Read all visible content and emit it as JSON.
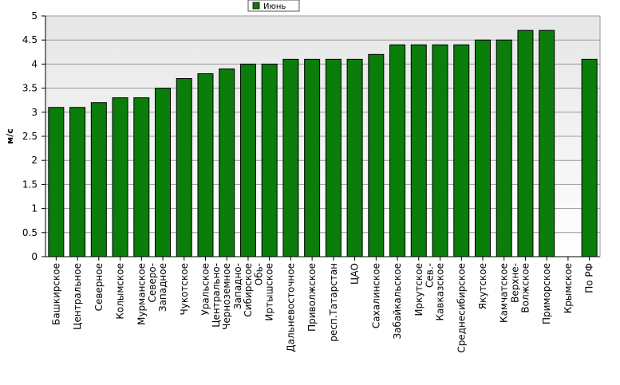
{
  "chart_data": {
    "type": "bar",
    "title": "",
    "xlabel": "",
    "ylabel": "м/с",
    "ylim": [
      0,
      5
    ],
    "yticks": [
      "0",
      "0.5",
      "1",
      "1.5",
      "2",
      "2.5",
      "3",
      "3.5",
      "4",
      "4.5",
      "5"
    ],
    "grid": true,
    "legend_position": "top-center",
    "bar_color": "#0a7d0a",
    "categories": [
      "Башкирское",
      "Центральное",
      "Северное",
      "Колымское",
      "Мурманское",
      "Северо-\nЗападное",
      "Чукотское",
      "Уральское",
      "Центрально-\nЧерноземное",
      "Западно-\nСибирское",
      "Обь-\nИртышское",
      "Дальневосточное",
      "Приволжское",
      "респ.Татарстан",
      "ЦАО",
      "Сахалинское",
      "Забайкальское",
      "Иркутское",
      "Сев.-\nКавказское",
      "Среднесибирское",
      "Якутское",
      "Камчатское",
      "Верхне-\nВолжское",
      "Приморское",
      "Крымское",
      "По РФ"
    ],
    "series": [
      {
        "name": "Июнь",
        "values": [
          3.1,
          3.1,
          3.2,
          3.3,
          3.3,
          3.5,
          3.7,
          3.8,
          3.9,
          4.0,
          4.0,
          4.1,
          4.1,
          4.1,
          4.1,
          4.2,
          4.4,
          4.4,
          4.4,
          4.4,
          4.5,
          4.5,
          4.7,
          4.7,
          null,
          4.1
        ]
      }
    ]
  }
}
